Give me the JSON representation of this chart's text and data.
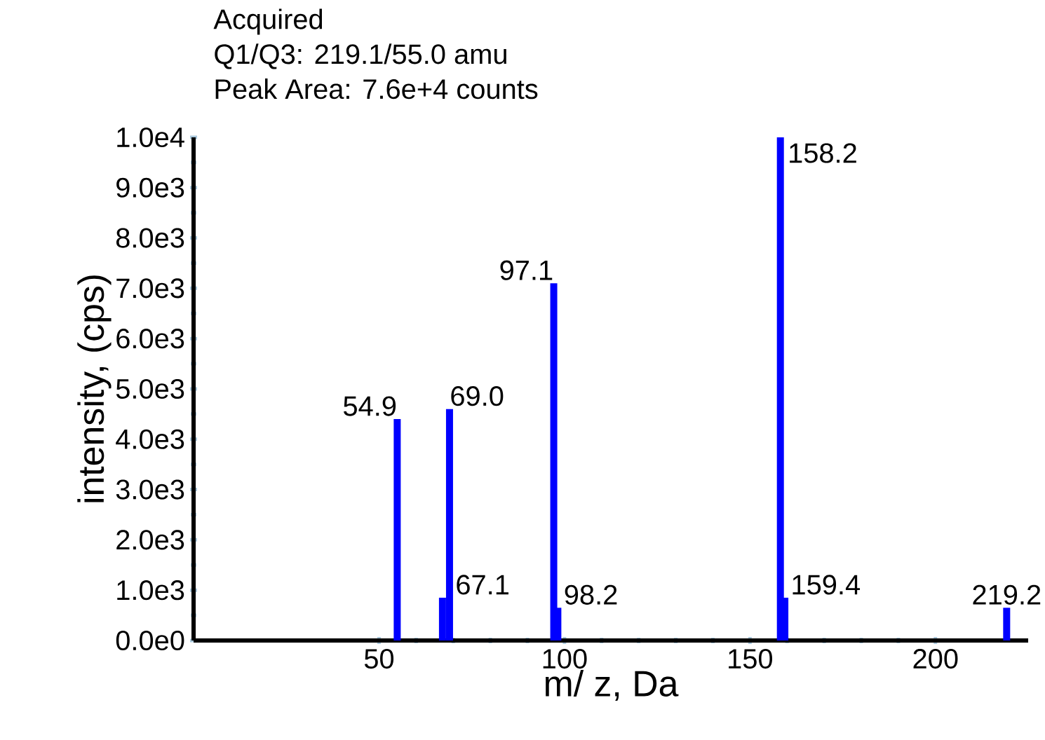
{
  "chart_data": {
    "type": "bar",
    "title": "Acquired",
    "subtitle": "Q1/Q3: 219.1/55.0 amu",
    "annotations": [
      "Peak Area: 7.6e+4 counts",
      "54.9",
      "67.1",
      "69.0",
      "97.1",
      "98.2",
      "158.2",
      "159.4",
      "219.2"
    ],
    "xlabel": "m/ z, Da",
    "ylabel": "intensity, (cps)",
    "x": [
      54.9,
      67.1,
      69.0,
      97.1,
      98.2,
      158.2,
      159.4,
      219.2
    ],
    "values": [
      4400,
      850,
      4600,
      7100,
      650,
      10000,
      850,
      650
    ],
    "color": "#0000ff",
    "xlim": [
      0,
      225
    ],
    "xticks": [
      50,
      100,
      150,
      200
    ],
    "ylim": [
      0,
      10000
    ],
    "yticks": [
      {
        "value": 0,
        "label": "0.0e0"
      },
      {
        "value": 1000,
        "label": "1.0e3"
      },
      {
        "value": 2000,
        "label": "2.0e3"
      },
      {
        "value": 3000,
        "label": "3.0e3"
      },
      {
        "value": 4000,
        "label": "4.0e3"
      },
      {
        "value": 5000,
        "label": "5.0e3"
      },
      {
        "value": 6000,
        "label": "6.0e3"
      },
      {
        "value": 7000,
        "label": "7.0e3"
      },
      {
        "value": 8000,
        "label": "8.0e3"
      },
      {
        "value": 9000,
        "label": "9.0e3"
      },
      {
        "value": 10000,
        "label": "1.0e4"
      }
    ]
  }
}
